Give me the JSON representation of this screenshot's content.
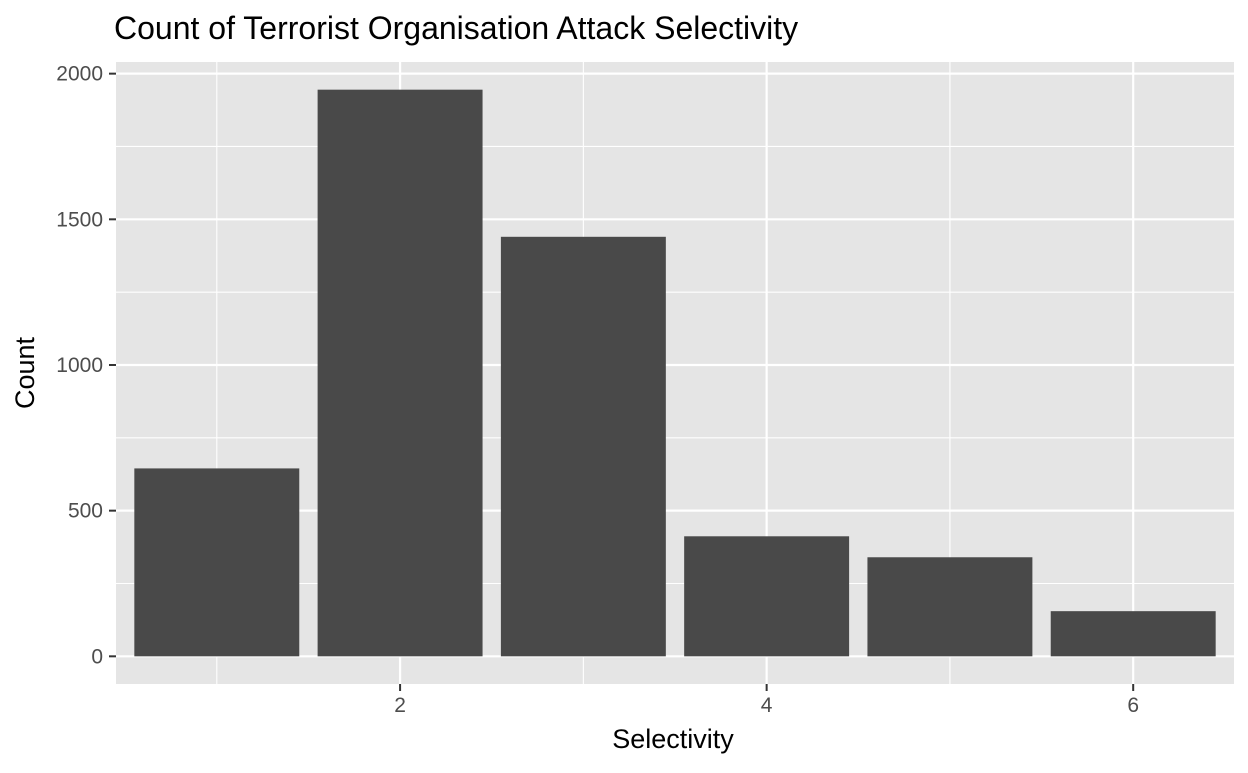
{
  "chart_data": {
    "type": "bar",
    "title": "Count of Terrorist Organisation Attack Selectivity",
    "xlabel": "Selectivity",
    "ylabel": "Count",
    "x": [
      1,
      2,
      3,
      4,
      5,
      6
    ],
    "values": [
      645,
      1945,
      1440,
      412,
      340,
      155
    ],
    "xlim": [
      0.45,
      6.55
    ],
    "ylim": [
      -95,
      2040
    ],
    "xticks": [
      2,
      4,
      6
    ],
    "yticks": [
      0,
      500,
      1000,
      1500,
      2000
    ],
    "grid": true,
    "bar_color": "#494949",
    "panel_background": "#e5e5e5",
    "grid_color": "#ffffff"
  }
}
